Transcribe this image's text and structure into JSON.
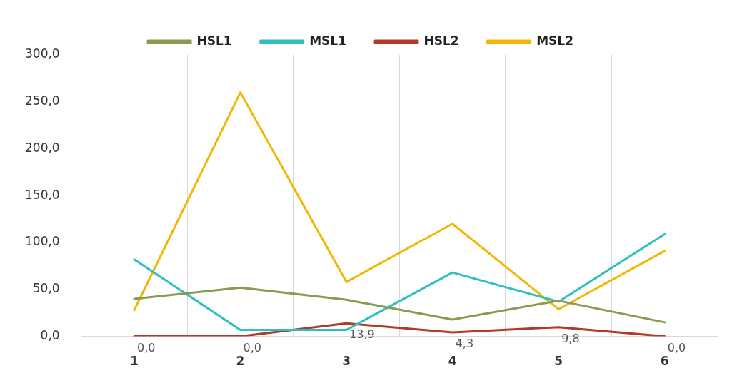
{
  "chart_data": {
    "type": "line",
    "categories": [
      "1",
      "2",
      "3",
      "4",
      "5",
      "6"
    ],
    "series": [
      {
        "name": "HSL1",
        "color": "#8a9a4e",
        "values": [
          40,
          52,
          39,
          18,
          38,
          15
        ]
      },
      {
        "name": "MSL1",
        "color": "#2ebfbf",
        "values": [
          82,
          7,
          7,
          68,
          37,
          109
        ]
      },
      {
        "name": "HSL2",
        "color": "#b23a28",
        "values": [
          0,
          0,
          13.9,
          4.3,
          9.8,
          0
        ],
        "value_labels": [
          "0,0",
          "0,0",
          "13,9",
          "4,3",
          "9,8",
          "0,0"
        ]
      },
      {
        "name": "MSL2",
        "color": "#f2b705",
        "values": [
          28,
          260,
          58,
          120,
          29,
          91
        ]
      }
    ],
    "ylim": [
      0,
      300
    ],
    "yticks": [
      {
        "value": 0,
        "label": "0,0"
      },
      {
        "value": 50,
        "label": "50,0"
      },
      {
        "value": 100,
        "label": "100,0"
      },
      {
        "value": 150,
        "label": "150,0"
      },
      {
        "value": 200,
        "label": "200,0"
      },
      {
        "value": 250,
        "label": "250,0"
      },
      {
        "value": 300,
        "label": "300,0"
      }
    ],
    "grid": "x",
    "legend": "top",
    "marker": "none"
  }
}
